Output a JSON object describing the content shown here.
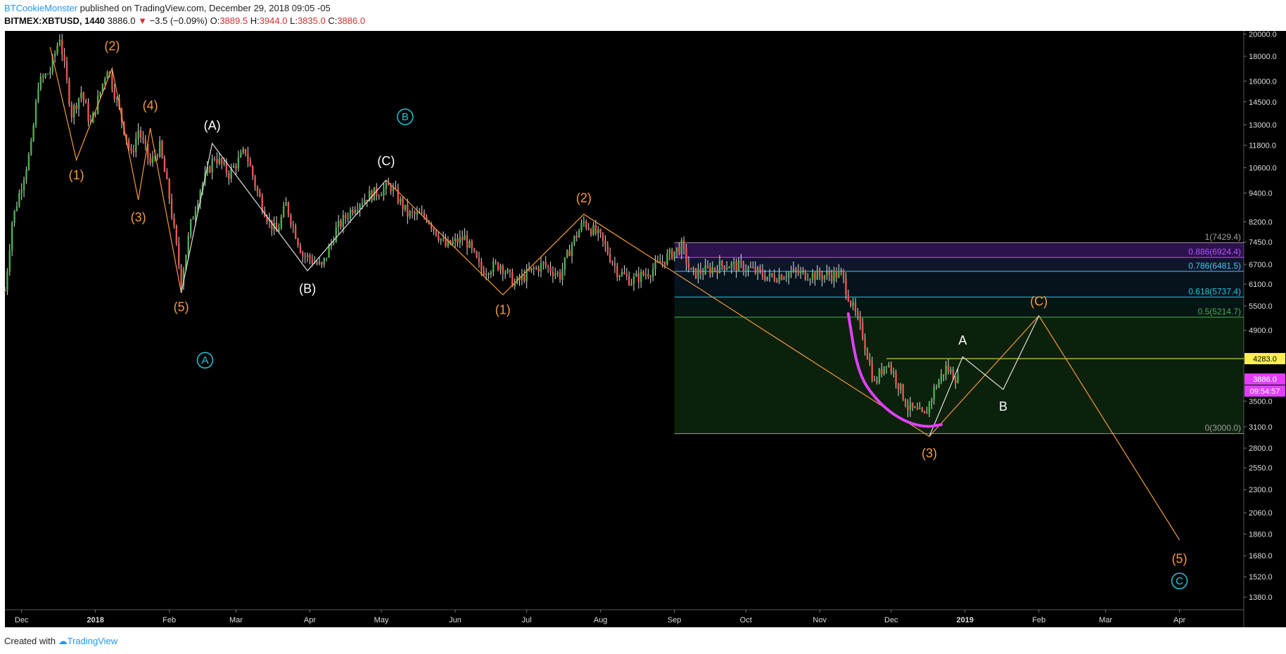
{
  "header": {
    "author": "BTCookieMonster",
    "published": "published on TradingView.com, December 29, 2018 09:05 -05",
    "symbol": "BITMEX:XBTUSD, 1440",
    "last": "3886.0",
    "change": "−3.5 (−0.09%)",
    "open_label": "O:",
    "open": "3889.5",
    "high_label": "H:",
    "high": "3944.0",
    "low_label": "L:",
    "low": "3835.0",
    "close_label": "C:",
    "close": "3886.0"
  },
  "footer": {
    "created_with": "Created with",
    "brand": "TradingView"
  },
  "chart_data": {
    "type": "candlestick",
    "y_scale": "log",
    "ylim": [
      1300,
      20300
    ],
    "y_ticks": [
      "20000.0",
      "18000.0",
      "16000.0",
      "14500.0",
      "13000.0",
      "11800.0",
      "10600.0",
      "9400.0",
      "8200.0",
      "7450.0",
      "6700.0",
      "6100.0",
      "5500.0",
      "4900.0",
      "4300.0",
      "3500.0",
      "3100.0",
      "2800.0",
      "2550.0",
      "2300.0",
      "2060.0",
      "1860.0",
      "1680.0",
      "1520.0",
      "1380.0"
    ],
    "x_range": [
      "2017-11-24",
      "2019-04-28"
    ],
    "x_ticks": [
      {
        "label": "Dec",
        "date": "2017-12-01"
      },
      {
        "label": "2018",
        "date": "2018-01-01"
      },
      {
        "label": "Feb",
        "date": "2018-02-01"
      },
      {
        "label": "Mar",
        "date": "2018-03-01"
      },
      {
        "label": "Apr",
        "date": "2018-04-01"
      },
      {
        "label": "May",
        "date": "2018-05-01"
      },
      {
        "label": "Jun",
        "date": "2018-06-01"
      },
      {
        "label": "Jul",
        "date": "2018-07-01"
      },
      {
        "label": "Aug",
        "date": "2018-08-01"
      },
      {
        "label": "Sep",
        "date": "2018-09-01"
      },
      {
        "label": "Oct",
        "date": "2018-10-01"
      },
      {
        "label": "Nov",
        "date": "2018-11-01"
      },
      {
        "label": "Dec",
        "date": "2018-12-01"
      },
      {
        "label": "2019",
        "date": "2019-01-01"
      },
      {
        "label": "Feb",
        "date": "2019-02-01"
      },
      {
        "label": "Mar",
        "date": "2019-03-01"
      },
      {
        "label": "Apr",
        "date": "2019-04-01"
      }
    ],
    "price_path": [
      [
        "2017-11-24",
        5900
      ],
      [
        "2017-11-27",
        8200
      ],
      [
        "2017-12-01",
        9800
      ],
      [
        "2017-12-05",
        11700
      ],
      [
        "2017-12-08",
        15800
      ],
      [
        "2017-12-13",
        16800
      ],
      [
        "2017-12-17",
        19800
      ],
      [
        "2017-12-22",
        13700
      ],
      [
        "2017-12-26",
        15200
      ],
      [
        "2017-12-30",
        13000
      ],
      [
        "2018-01-06",
        17100
      ],
      [
        "2018-01-10",
        14500
      ],
      [
        "2018-01-16",
        11200
      ],
      [
        "2018-01-19",
        12700
      ],
      [
        "2018-01-24",
        10800
      ],
      [
        "2018-01-28",
        11700
      ],
      [
        "2018-02-01",
        9200
      ],
      [
        "2018-02-06",
        6200
      ],
      [
        "2018-02-10",
        8100
      ],
      [
        "2018-02-14",
        9600
      ],
      [
        "2018-02-20",
        11200
      ],
      [
        "2018-02-26",
        10300
      ],
      [
        "2018-03-05",
        11500
      ],
      [
        "2018-03-10",
        9400
      ],
      [
        "2018-03-15",
        8200
      ],
      [
        "2018-03-18",
        7800
      ],
      [
        "2018-03-22",
        8900
      ],
      [
        "2018-03-29",
        7000
      ],
      [
        "2018-04-01",
        6900
      ],
      [
        "2018-04-06",
        6600
      ],
      [
        "2018-04-12",
        7900
      ],
      [
        "2018-04-20",
        8900
      ],
      [
        "2018-04-26",
        9300
      ],
      [
        "2018-05-05",
        9700
      ],
      [
        "2018-05-12",
        8500
      ],
      [
        "2018-05-20",
        8400
      ],
      [
        "2018-05-28",
        7300
      ],
      [
        "2018-06-05",
        7600
      ],
      [
        "2018-06-12",
        6500
      ],
      [
        "2018-06-20",
        6700
      ],
      [
        "2018-06-26",
        6100
      ],
      [
        "2018-07-01",
        6400
      ],
      [
        "2018-07-08",
        6700
      ],
      [
        "2018-07-15",
        6350
      ],
      [
        "2018-07-20",
        7400
      ],
      [
        "2018-07-25",
        8200
      ],
      [
        "2018-08-01",
        7600
      ],
      [
        "2018-08-08",
        6500
      ],
      [
        "2018-08-14",
        6200
      ],
      [
        "2018-08-22",
        6500
      ],
      [
        "2018-08-30",
        7000
      ],
      [
        "2018-09-04",
        7300
      ],
      [
        "2018-09-08",
        6400
      ],
      [
        "2018-09-14",
        6500
      ],
      [
        "2018-09-22",
        6700
      ],
      [
        "2018-10-01",
        6600
      ],
      [
        "2018-10-11",
        6300
      ],
      [
        "2018-10-20",
        6450
      ],
      [
        "2018-11-01",
        6350
      ],
      [
        "2018-11-10",
        6400
      ],
      [
        "2018-11-14",
        5600
      ],
      [
        "2018-11-19",
        4800
      ],
      [
        "2018-11-24",
        3800
      ],
      [
        "2018-11-29",
        4250
      ],
      [
        "2018-12-03",
        3900
      ],
      [
        "2018-12-08",
        3400
      ],
      [
        "2018-12-15",
        3250
      ],
      [
        "2018-12-19",
        3700
      ],
      [
        "2018-12-24",
        4100
      ],
      [
        "2018-12-29",
        3886
      ]
    ],
    "fibonacci": {
      "range_dates": [
        "2018-09-01",
        "2019-04-28"
      ],
      "levels": [
        {
          "label": "1(7429.4)",
          "price": 7429.4,
          "color": "#9e9e9e"
        },
        {
          "label": "0.886(6924.4)",
          "price": 6924.4,
          "color": "#b254ff"
        },
        {
          "label": "0.786(6481.5)",
          "price": 6481.5,
          "color": "#4fc3f7"
        },
        {
          "label": "0.618(5737.4)",
          "price": 5737.4,
          "color": "#26c6da"
        },
        {
          "label": "0.5(5214.7)",
          "price": 5214.7,
          "color": "#4caf50"
        },
        {
          "label": "0(3000.0)",
          "price": 3000.0,
          "color": "#9e9e9e"
        }
      ]
    },
    "horizontal_line": {
      "price": 4283.0,
      "label": "4283.0",
      "color": "#ffee58"
    },
    "price_badges": [
      {
        "label": "3886.0",
        "price": 3886.0,
        "color": "#e040fb"
      },
      {
        "label": "09:54:57",
        "price": 3700.0,
        "color": "#e040fb"
      }
    ],
    "wave_lines": [
      {
        "color": "#f59b3b",
        "points": [
          [
            "2017-12-13",
            18800
          ],
          [
            "2017-12-24",
            11000
          ],
          [
            "2018-01-08",
            17000
          ],
          [
            "2018-01-19",
            9100
          ],
          [
            "2018-01-24",
            12800
          ],
          [
            "2018-02-06",
            5850
          ]
        ]
      },
      {
        "color": "#f59b3b",
        "points": [
          [
            "2018-05-03",
            10000
          ],
          [
            "2018-06-21",
            5800
          ],
          [
            "2018-07-25",
            8500
          ],
          [
            "2018-12-17",
            2960
          ],
          [
            "2019-02-01",
            5250
          ],
          [
            "2019-04-01",
            1810
          ]
        ]
      },
      {
        "color": "#e0e0e0",
        "points": [
          [
            "2018-02-06",
            5850
          ],
          [
            "2018-02-19",
            11900
          ],
          [
            "2018-03-31",
            6500
          ],
          [
            "2018-05-03",
            10000
          ]
        ]
      },
      {
        "color": "#e0e0e0",
        "points": [
          [
            "2018-12-17",
            2960
          ],
          [
            "2018-12-31",
            4320
          ],
          [
            "2019-01-17",
            3700
          ],
          [
            "2019-02-01",
            5250
          ]
        ]
      }
    ],
    "wave_labels": [
      {
        "text": "(1)",
        "date": "2017-12-24",
        "price": 10200,
        "color": "#f59b3b"
      },
      {
        "text": "(2)",
        "date": "2018-01-08",
        "price": 18800,
        "color": "#f59b3b"
      },
      {
        "text": "(3)",
        "date": "2018-01-19",
        "price": 8350,
        "color": "#f59b3b"
      },
      {
        "text": "(4)",
        "date": "2018-01-24",
        "price": 14200,
        "color": "#f59b3b"
      },
      {
        "text": "(5)",
        "date": "2018-02-06",
        "price": 5450,
        "color": "#f59b3b"
      },
      {
        "text": "(A)",
        "date": "2018-02-19",
        "price": 12900,
        "color": "#ffffff"
      },
      {
        "text": "(B)",
        "date": "2018-03-31",
        "price": 5950,
        "color": "#ffffff"
      },
      {
        "text": "(C)",
        "date": "2018-05-03",
        "price": 10900,
        "color": "#ffffff"
      },
      {
        "text": "(1)",
        "date": "2018-06-21",
        "price": 5380,
        "color": "#f59b3b"
      },
      {
        "text": "(2)",
        "date": "2018-07-25",
        "price": 9150,
        "color": "#f59b3b"
      },
      {
        "text": "(3)",
        "date": "2018-12-17",
        "price": 2720,
        "color": "#f59b3b"
      },
      {
        "text": "A",
        "date": "2018-12-31",
        "price": 4650,
        "color": "#ffffff"
      },
      {
        "text": "B",
        "date": "2019-01-17",
        "price": 3400,
        "color": "#ffffff"
      },
      {
        "text": "(C)",
        "date": "2019-02-01",
        "price": 5600,
        "color": "#f59b3b"
      },
      {
        "text": "(5)",
        "date": "2019-04-01",
        "price": 1650,
        "color": "#f59b3b"
      }
    ],
    "circled_labels": [
      {
        "text": "A",
        "date": "2018-02-16",
        "price": 4250,
        "color": "#26c6da"
      },
      {
        "text": "B",
        "date": "2018-05-11",
        "price": 13500,
        "color": "#26c6da"
      },
      {
        "text": "C",
        "date": "2019-04-01",
        "price": 1490,
        "color": "#26c6da"
      }
    ],
    "arc": {
      "color": "#e040fb",
      "points": [
        [
          "2018-11-13",
          5300
        ],
        [
          "2018-11-17",
          4000
        ],
        [
          "2018-11-25",
          3500
        ],
        [
          "2018-12-05",
          3200
        ],
        [
          "2018-12-15",
          3090
        ],
        [
          "2018-12-22",
          3130
        ]
      ]
    },
    "candle_colors": {
      "up": "#4caf50",
      "down": "#ef5350",
      "wick": "#e0e0e0"
    }
  }
}
